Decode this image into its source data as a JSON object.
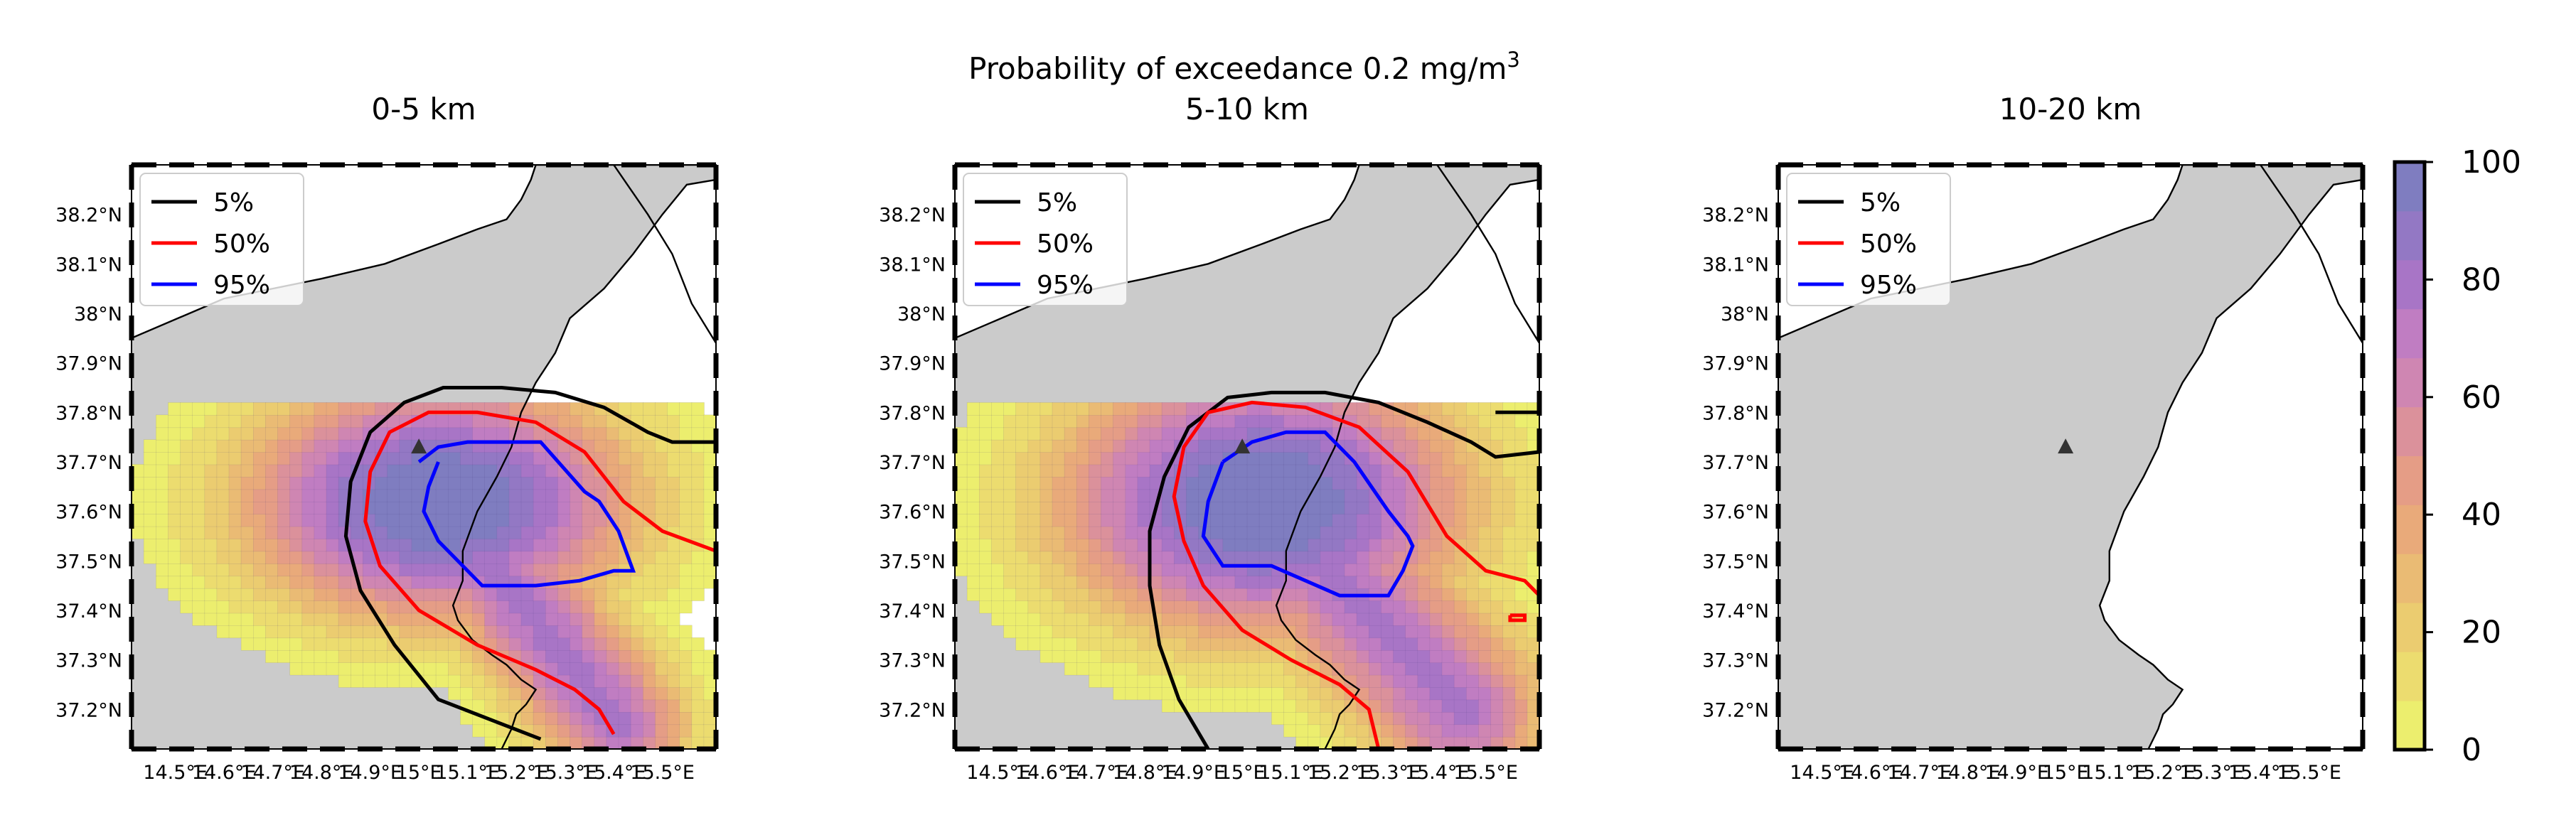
{
  "suptitle": "Probability of exceedance 0.2 mg/m",
  "suptitle_sup": "3",
  "colors": {
    "land": "#cbcbcb",
    "coast": "#000000",
    "sea": "#ffffff",
    "contour_5": "#000000",
    "contour_50": "#ff0000",
    "contour_95": "#0000ff",
    "vent_marker": "#333333"
  },
  "colorbar": {
    "ticks": [
      "0",
      "20",
      "40",
      "60",
      "80",
      "100"
    ],
    "range": [
      0,
      100
    ],
    "colors": [
      "#ecee6e",
      "#ecdc6f",
      "#ebcc70",
      "#eabb74",
      "#e9aa7a",
      "#e59d86",
      "#db919b",
      "#cf86b2",
      "#c07dc2",
      "#a875c6",
      "#9378c4",
      "#7f7dc0"
    ]
  },
  "legend": [
    {
      "label": "5%",
      "color": "#000000"
    },
    {
      "label": "50%",
      "color": "#ff0000"
    },
    {
      "label": "95%",
      "color": "#0000ff"
    }
  ],
  "axes": {
    "lat_labels": [
      "38.2°N",
      "38.1°N",
      "38°N",
      "37.9°N",
      "37.8°N",
      "37.7°N",
      "37.6°N",
      "37.5°N",
      "37.4°N",
      "37.3°N",
      "37.2°N"
    ],
    "lon_labels": [
      "14.5°E",
      "14.6°E",
      "14.7°E",
      "14.8°E",
      "14.9°E",
      "15°E",
      "15.1°E",
      "15.2°E",
      "15.3°E",
      "15.4°E",
      "15.5°E"
    ],
    "lat_range": [
      37.12,
      38.3
    ],
    "lon_range": [
      14.41,
      15.61
    ]
  },
  "vent": {
    "lon": 15.0,
    "lat": 37.73
  },
  "chart_data": [
    {
      "type": "heatmap",
      "title": "0-5 km",
      "x_range": [
        14.41,
        15.61
      ],
      "y_range": [
        37.12,
        38.3
      ],
      "value_range": [
        0,
        100
      ],
      "grid_resolution_deg": 0.025,
      "field": {
        "center": [
          15.04,
          37.62
        ],
        "inner_axes": [
          0.19,
          0.115
        ],
        "tail_end": [
          15.41,
          37.17
        ],
        "tail_width": 0.13
      },
      "contours": {
        "5%": {
          "x": [
            15.25,
            15.04,
            14.95,
            14.88,
            14.85,
            14.86,
            14.9,
            14.97,
            15.05,
            15.17,
            15.28,
            15.38,
            15.47,
            15.52,
            15.61
          ],
          "y": [
            37.14,
            37.22,
            37.33,
            37.44,
            37.55,
            37.66,
            37.76,
            37.82,
            37.85,
            37.85,
            37.84,
            37.81,
            37.76,
            37.74,
            37.74
          ]
        },
        "50%": {
          "x": [
            15.4,
            15.37,
            15.32,
            15.24,
            15.12,
            15.0,
            14.92,
            14.89,
            14.9,
            14.94,
            15.02,
            15.12,
            15.24,
            15.34,
            15.42,
            15.5,
            15.61
          ],
          "y": [
            37.15,
            37.2,
            37.24,
            37.28,
            37.33,
            37.4,
            37.49,
            37.58,
            37.68,
            37.76,
            37.8,
            37.8,
            37.78,
            37.72,
            37.62,
            37.56,
            37.52
          ]
        },
        "95%": {
          "x": [
            15.04,
            15.02,
            15.01,
            15.04,
            15.13,
            15.24,
            15.33,
            15.4,
            15.44,
            15.41,
            15.37,
            15.34,
            15.25,
            15.1,
            15.04,
            15.0
          ],
          "y": [
            37.7,
            37.65,
            37.6,
            37.54,
            37.45,
            37.45,
            37.46,
            37.48,
            37.48,
            37.56,
            37.62,
            37.64,
            37.74,
            37.74,
            37.73,
            37.7
          ]
        }
      }
    },
    {
      "type": "heatmap",
      "title": "5-10 km",
      "x_range": [
        14.41,
        15.61
      ],
      "y_range": [
        37.12,
        38.3
      ],
      "value_range": [
        0,
        100
      ],
      "grid_resolution_deg": 0.025,
      "field": {
        "center": [
          15.04,
          37.62
        ],
        "inner_axes": [
          0.2,
          0.13
        ],
        "tail_end": [
          15.45,
          37.2
        ],
        "tail_width": 0.16
      },
      "contours": {
        "5%": {
          "x": [
            14.93,
            14.87,
            14.83,
            14.81,
            14.81,
            14.84,
            14.89,
            14.97,
            15.06,
            15.17,
            15.28,
            15.38,
            15.47,
            15.52,
            15.61
          ],
          "y": [
            37.12,
            37.22,
            37.33,
            37.45,
            37.56,
            37.67,
            37.77,
            37.83,
            37.84,
            37.84,
            37.82,
            37.78,
            37.74,
            37.71,
            37.72
          ],
          "extra": [
            {
              "x": [
                15.52,
                15.61
              ],
              "y": [
                37.8,
                37.8
              ]
            }
          ]
        },
        "50%": {
          "x": [
            15.28,
            15.26,
            15.2,
            15.1,
            15.0,
            14.92,
            14.88,
            14.86,
            14.88,
            14.93,
            15.02,
            15.13,
            15.24,
            15.34,
            15.42,
            15.5,
            15.58,
            15.61
          ],
          "y": [
            37.12,
            37.2,
            37.25,
            37.3,
            37.36,
            37.45,
            37.54,
            37.63,
            37.73,
            37.8,
            37.82,
            37.81,
            37.77,
            37.68,
            37.55,
            37.48,
            37.46,
            37.43
          ],
          "extra": [
            {
              "x": [
                15.55,
                15.58,
                15.58,
                15.55,
                15.55
              ],
              "y": [
                37.39,
                37.39,
                37.38,
                37.38,
                37.39
              ]
            }
          ]
        },
        "95%": {
          "x": [
            14.96,
            14.93,
            14.92,
            14.96,
            15.06,
            15.2,
            15.3,
            15.33,
            15.35,
            15.34,
            15.3,
            15.23,
            15.17,
            15.09,
            15.02,
            14.96
          ],
          "y": [
            37.7,
            37.62,
            37.55,
            37.49,
            37.49,
            37.43,
            37.43,
            37.48,
            37.53,
            37.55,
            37.6,
            37.7,
            37.76,
            37.76,
            37.74,
            37.7
          ]
        }
      }
    },
    {
      "type": "heatmap",
      "title": "10-20 km",
      "x_range": [
        14.41,
        15.61
      ],
      "y_range": [
        37.12,
        38.3
      ],
      "value_range": [
        0,
        100
      ],
      "field": null,
      "contours": {}
    }
  ]
}
